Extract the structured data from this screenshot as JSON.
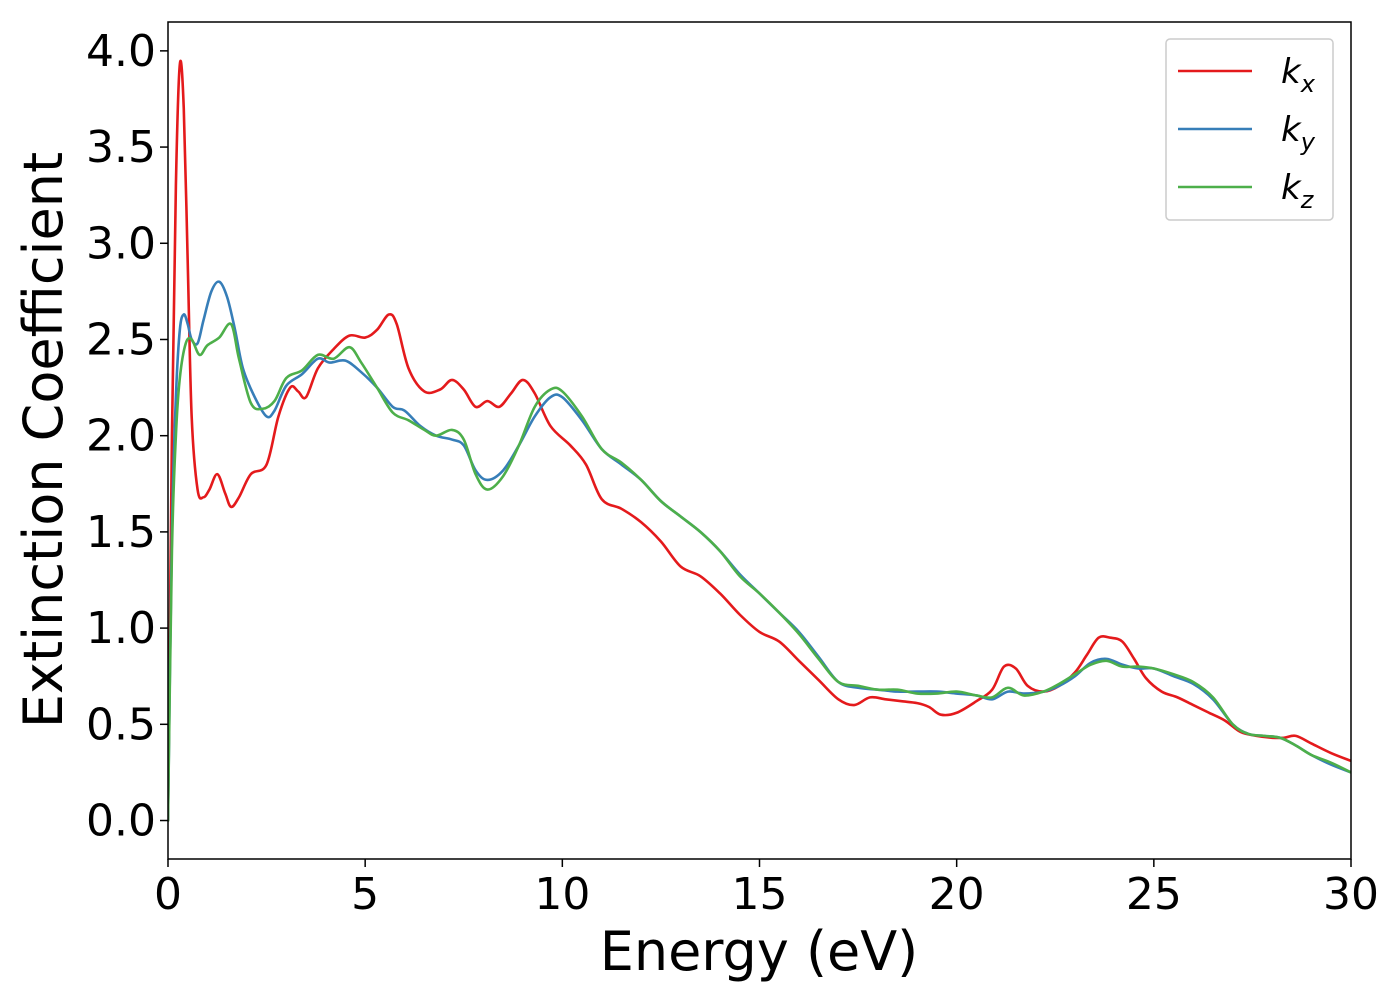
{
  "chart_data": {
    "type": "line",
    "title": "",
    "xlabel": "Energy (eV)",
    "ylabel": "Extinction Coefficient",
    "xlim": [
      0,
      30
    ],
    "ylim": [
      -0.2,
      4.15
    ],
    "xticks": [
      0,
      5,
      10,
      15,
      20,
      25,
      30
    ],
    "xtick_labels": [
      "0",
      "5",
      "10",
      "15",
      "20",
      "25",
      "30"
    ],
    "yticks": [
      0.0,
      0.5,
      1.0,
      1.5,
      2.0,
      2.5,
      3.0,
      3.5,
      4.0
    ],
    "ytick_labels": [
      "0.0",
      "0.5",
      "1.0",
      "1.5",
      "2.0",
      "2.5",
      "3.0",
      "3.5",
      "4.0"
    ],
    "grid": false,
    "legend_position": "top-right",
    "series": [
      {
        "name": "k_x",
        "label_base": "k",
        "label_sub": "x",
        "color": "#e41a1c",
        "points": [
          [
            0.0,
            0.0
          ],
          [
            0.1,
            2.0
          ],
          [
            0.2,
            3.3
          ],
          [
            0.3,
            3.93
          ],
          [
            0.4,
            3.7
          ],
          [
            0.5,
            2.9
          ],
          [
            0.6,
            2.1
          ],
          [
            0.75,
            1.72
          ],
          [
            0.9,
            1.68
          ],
          [
            1.05,
            1.72
          ],
          [
            1.25,
            1.8
          ],
          [
            1.45,
            1.7
          ],
          [
            1.6,
            1.63
          ],
          [
            1.8,
            1.68
          ],
          [
            2.1,
            1.8
          ],
          [
            2.5,
            1.85
          ],
          [
            2.8,
            2.1
          ],
          [
            3.1,
            2.25
          ],
          [
            3.3,
            2.23
          ],
          [
            3.5,
            2.2
          ],
          [
            3.8,
            2.35
          ],
          [
            4.2,
            2.45
          ],
          [
            4.6,
            2.52
          ],
          [
            5.0,
            2.51
          ],
          [
            5.3,
            2.55
          ],
          [
            5.6,
            2.63
          ],
          [
            5.8,
            2.58
          ],
          [
            6.1,
            2.35
          ],
          [
            6.5,
            2.23
          ],
          [
            6.9,
            2.24
          ],
          [
            7.2,
            2.29
          ],
          [
            7.5,
            2.24
          ],
          [
            7.8,
            2.15
          ],
          [
            8.1,
            2.18
          ],
          [
            8.4,
            2.15
          ],
          [
            8.7,
            2.22
          ],
          [
            9.0,
            2.29
          ],
          [
            9.3,
            2.22
          ],
          [
            9.7,
            2.05
          ],
          [
            10.2,
            1.95
          ],
          [
            10.6,
            1.85
          ],
          [
            11.0,
            1.67
          ],
          [
            11.5,
            1.62
          ],
          [
            12.0,
            1.55
          ],
          [
            12.5,
            1.45
          ],
          [
            13.0,
            1.32
          ],
          [
            13.5,
            1.27
          ],
          [
            14.0,
            1.18
          ],
          [
            14.5,
            1.07
          ],
          [
            15.0,
            0.98
          ],
          [
            15.5,
            0.93
          ],
          [
            16.0,
            0.83
          ],
          [
            16.5,
            0.73
          ],
          [
            17.0,
            0.63
          ],
          [
            17.4,
            0.6
          ],
          [
            17.8,
            0.64
          ],
          [
            18.2,
            0.63
          ],
          [
            18.6,
            0.62
          ],
          [
            19.0,
            0.61
          ],
          [
            19.3,
            0.59
          ],
          [
            19.6,
            0.55
          ],
          [
            20.0,
            0.56
          ],
          [
            20.5,
            0.62
          ],
          [
            20.9,
            0.68
          ],
          [
            21.2,
            0.8
          ],
          [
            21.5,
            0.79
          ],
          [
            21.8,
            0.7
          ],
          [
            22.2,
            0.67
          ],
          [
            22.6,
            0.7
          ],
          [
            23.0,
            0.77
          ],
          [
            23.3,
            0.86
          ],
          [
            23.6,
            0.95
          ],
          [
            23.9,
            0.95
          ],
          [
            24.2,
            0.93
          ],
          [
            24.5,
            0.84
          ],
          [
            24.8,
            0.74
          ],
          [
            25.2,
            0.67
          ],
          [
            25.6,
            0.64
          ],
          [
            26.0,
            0.6
          ],
          [
            26.4,
            0.56
          ],
          [
            26.8,
            0.52
          ],
          [
            27.2,
            0.46
          ],
          [
            27.6,
            0.44
          ],
          [
            28.0,
            0.43
          ],
          [
            28.3,
            0.43
          ],
          [
            28.6,
            0.44
          ],
          [
            29.0,
            0.4
          ],
          [
            29.5,
            0.35
          ],
          [
            30.0,
            0.31
          ]
        ]
      },
      {
        "name": "k_y",
        "label_base": "k",
        "label_sub": "y",
        "color": "#377eb8",
        "points": [
          [
            0.0,
            0.0
          ],
          [
            0.1,
            1.5
          ],
          [
            0.2,
            2.2
          ],
          [
            0.3,
            2.55
          ],
          [
            0.4,
            2.63
          ],
          [
            0.5,
            2.58
          ],
          [
            0.6,
            2.5
          ],
          [
            0.75,
            2.48
          ],
          [
            0.9,
            2.6
          ],
          [
            1.1,
            2.75
          ],
          [
            1.3,
            2.8
          ],
          [
            1.5,
            2.72
          ],
          [
            1.7,
            2.55
          ],
          [
            1.9,
            2.35
          ],
          [
            2.2,
            2.2
          ],
          [
            2.5,
            2.1
          ],
          [
            2.7,
            2.13
          ],
          [
            3.0,
            2.26
          ],
          [
            3.4,
            2.32
          ],
          [
            3.8,
            2.4
          ],
          [
            4.1,
            2.38
          ],
          [
            4.5,
            2.39
          ],
          [
            4.9,
            2.33
          ],
          [
            5.3,
            2.25
          ],
          [
            5.7,
            2.15
          ],
          [
            6.0,
            2.13
          ],
          [
            6.4,
            2.05
          ],
          [
            6.8,
            2.0
          ],
          [
            7.2,
            1.98
          ],
          [
            7.5,
            1.95
          ],
          [
            7.8,
            1.82
          ],
          [
            8.1,
            1.77
          ],
          [
            8.5,
            1.82
          ],
          [
            8.9,
            1.95
          ],
          [
            9.3,
            2.1
          ],
          [
            9.7,
            2.2
          ],
          [
            10.0,
            2.2
          ],
          [
            10.5,
            2.08
          ],
          [
            11.0,
            1.93
          ],
          [
            11.5,
            1.85
          ],
          [
            12.0,
            1.77
          ],
          [
            12.5,
            1.66
          ],
          [
            13.0,
            1.58
          ],
          [
            13.5,
            1.5
          ],
          [
            14.0,
            1.4
          ],
          [
            14.5,
            1.28
          ],
          [
            15.0,
            1.18
          ],
          [
            15.5,
            1.08
          ],
          [
            16.0,
            0.98
          ],
          [
            16.5,
            0.85
          ],
          [
            17.0,
            0.72
          ],
          [
            17.5,
            0.69
          ],
          [
            18.0,
            0.68
          ],
          [
            18.5,
            0.67
          ],
          [
            19.0,
            0.67
          ],
          [
            19.5,
            0.67
          ],
          [
            20.0,
            0.66
          ],
          [
            20.5,
            0.65
          ],
          [
            20.9,
            0.63
          ],
          [
            21.3,
            0.67
          ],
          [
            21.7,
            0.66
          ],
          [
            22.2,
            0.67
          ],
          [
            22.6,
            0.7
          ],
          [
            23.0,
            0.75
          ],
          [
            23.4,
            0.82
          ],
          [
            23.8,
            0.84
          ],
          [
            24.2,
            0.81
          ],
          [
            24.6,
            0.79
          ],
          [
            25.0,
            0.79
          ],
          [
            25.5,
            0.75
          ],
          [
            26.0,
            0.71
          ],
          [
            26.5,
            0.63
          ],
          [
            27.0,
            0.5
          ],
          [
            27.4,
            0.45
          ],
          [
            27.8,
            0.44
          ],
          [
            28.2,
            0.43
          ],
          [
            28.6,
            0.39
          ],
          [
            29.0,
            0.34
          ],
          [
            29.5,
            0.29
          ],
          [
            30.0,
            0.25
          ]
        ]
      },
      {
        "name": "k_z",
        "label_base": "k",
        "label_sub": "z",
        "color": "#4daf4a",
        "points": [
          [
            0.0,
            0.0
          ],
          [
            0.1,
            1.4
          ],
          [
            0.2,
            2.0
          ],
          [
            0.3,
            2.3
          ],
          [
            0.45,
            2.48
          ],
          [
            0.6,
            2.5
          ],
          [
            0.8,
            2.42
          ],
          [
            1.0,
            2.47
          ],
          [
            1.3,
            2.51
          ],
          [
            1.6,
            2.58
          ],
          [
            1.8,
            2.4
          ],
          [
            2.1,
            2.17
          ],
          [
            2.4,
            2.14
          ],
          [
            2.7,
            2.18
          ],
          [
            3.0,
            2.3
          ],
          [
            3.4,
            2.34
          ],
          [
            3.8,
            2.42
          ],
          [
            4.2,
            2.4
          ],
          [
            4.6,
            2.46
          ],
          [
            4.9,
            2.38
          ],
          [
            5.3,
            2.25
          ],
          [
            5.7,
            2.12
          ],
          [
            6.1,
            2.08
          ],
          [
            6.5,
            2.03
          ],
          [
            6.8,
            2.0
          ],
          [
            7.2,
            2.03
          ],
          [
            7.5,
            1.98
          ],
          [
            7.8,
            1.8
          ],
          [
            8.1,
            1.72
          ],
          [
            8.5,
            1.79
          ],
          [
            8.9,
            1.95
          ],
          [
            9.3,
            2.15
          ],
          [
            9.7,
            2.24
          ],
          [
            10.0,
            2.23
          ],
          [
            10.5,
            2.1
          ],
          [
            11.0,
            1.93
          ],
          [
            11.5,
            1.86
          ],
          [
            12.0,
            1.77
          ],
          [
            12.5,
            1.66
          ],
          [
            13.0,
            1.58
          ],
          [
            13.5,
            1.5
          ],
          [
            14.0,
            1.4
          ],
          [
            14.5,
            1.27
          ],
          [
            15.0,
            1.18
          ],
          [
            15.5,
            1.08
          ],
          [
            16.0,
            0.97
          ],
          [
            16.5,
            0.84
          ],
          [
            17.0,
            0.72
          ],
          [
            17.5,
            0.7
          ],
          [
            18.0,
            0.68
          ],
          [
            18.5,
            0.68
          ],
          [
            19.0,
            0.66
          ],
          [
            19.5,
            0.66
          ],
          [
            20.0,
            0.67
          ],
          [
            20.5,
            0.65
          ],
          [
            20.9,
            0.64
          ],
          [
            21.3,
            0.69
          ],
          [
            21.7,
            0.65
          ],
          [
            22.2,
            0.67
          ],
          [
            22.6,
            0.71
          ],
          [
            23.0,
            0.76
          ],
          [
            23.4,
            0.81
          ],
          [
            23.8,
            0.83
          ],
          [
            24.2,
            0.8
          ],
          [
            24.6,
            0.8
          ],
          [
            25.0,
            0.79
          ],
          [
            25.5,
            0.76
          ],
          [
            26.0,
            0.72
          ],
          [
            26.5,
            0.64
          ],
          [
            27.0,
            0.5
          ],
          [
            27.4,
            0.45
          ],
          [
            27.8,
            0.44
          ],
          [
            28.2,
            0.43
          ],
          [
            28.6,
            0.39
          ],
          [
            29.0,
            0.34
          ],
          [
            29.5,
            0.3
          ],
          [
            30.0,
            0.25
          ]
        ]
      }
    ]
  }
}
